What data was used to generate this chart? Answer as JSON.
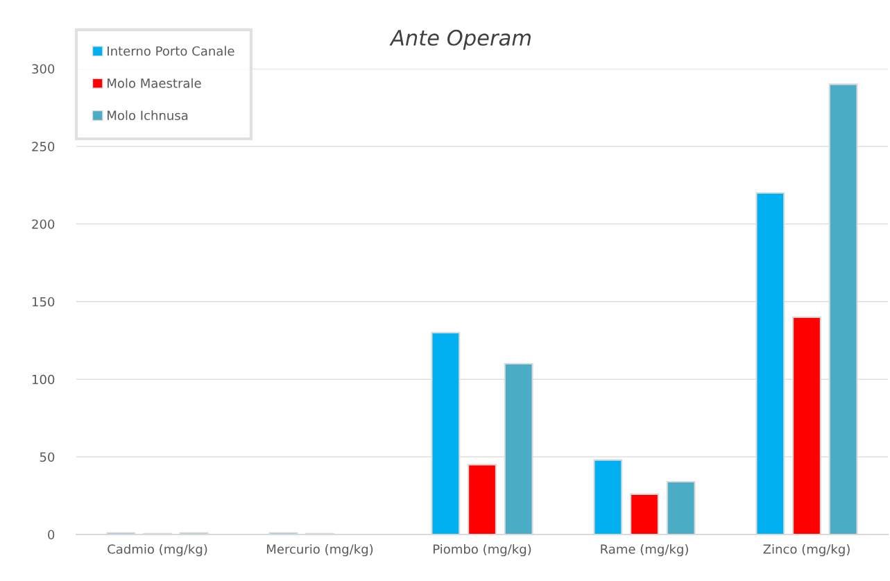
{
  "chart_data": {
    "type": "bar",
    "title": "Ante Operam",
    "categories": [
      "Cadmio (mg/kg)",
      "Mercurio (mg/kg)",
      "Piombo (mg/kg)",
      "Rame (mg/kg)",
      "Zinco (mg/kg)"
    ],
    "series": [
      {
        "name": "Interno Porto Canale",
        "color": "#00b0f0",
        "values": [
          1,
          1,
          130,
          48,
          220
        ]
      },
      {
        "name": "Molo Maestrale",
        "color": "#ff0000",
        "values": [
          0.5,
          0.5,
          45,
          26,
          140
        ]
      },
      {
        "name": "Molo Ichnusa",
        "color": "#4bacc6",
        "values": [
          1,
          null,
          110,
          34,
          290
        ]
      }
    ],
    "ylim": [
      0,
      300
    ],
    "yticks": [
      0,
      50,
      100,
      150,
      200,
      250,
      300
    ],
    "grid": "y",
    "legend": "top left"
  }
}
